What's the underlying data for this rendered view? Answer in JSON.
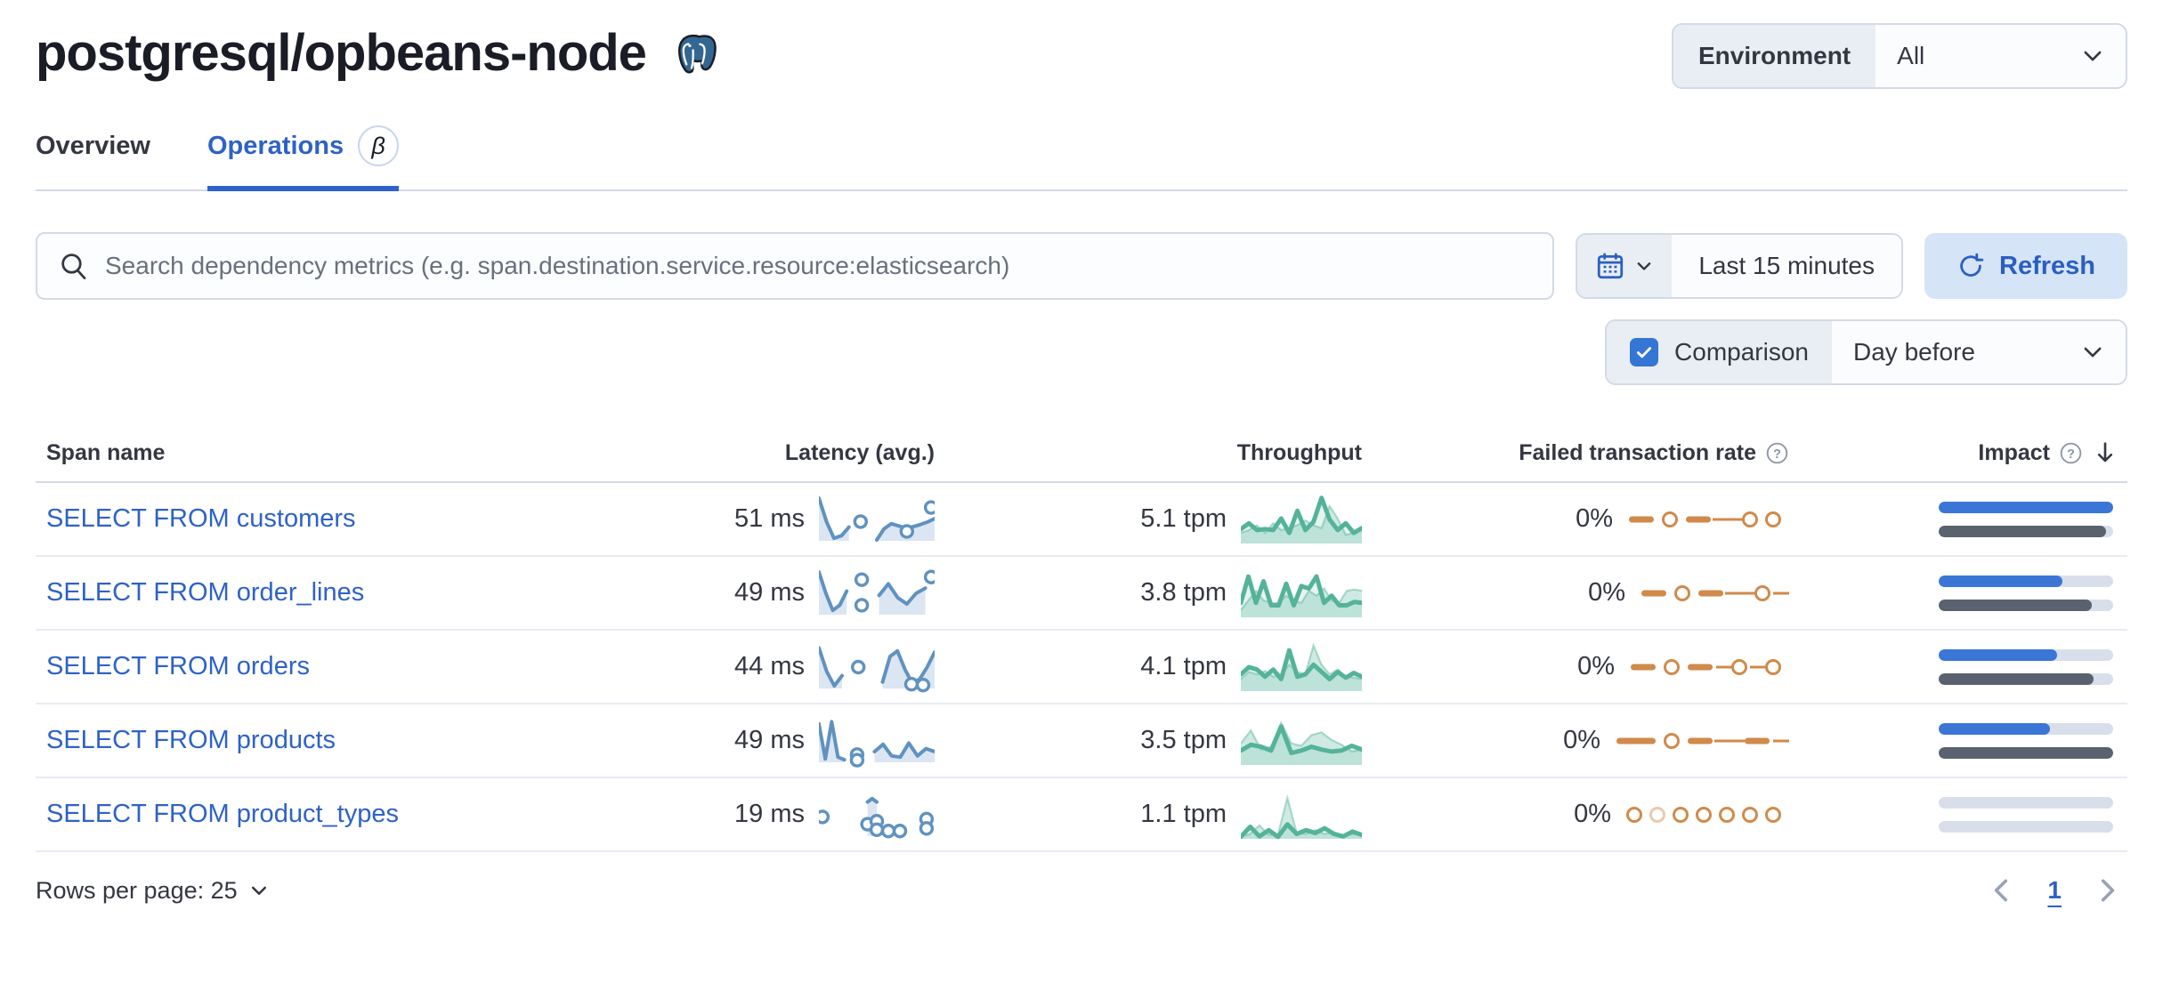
{
  "header": {
    "title": "postgresql/opbeans-node",
    "env_label": "Environment",
    "env_value": "All"
  },
  "tabs": [
    {
      "label": "Overview"
    },
    {
      "label": "Operations",
      "beta": "β"
    }
  ],
  "toolbar": {
    "search_placeholder": "Search dependency metrics (e.g. span.destination.service.resource:elasticsearch)",
    "time_range": "Last 15 minutes",
    "refresh_label": "Refresh",
    "comparison_label": "Comparison",
    "comparison_value": "Day before"
  },
  "table": {
    "columns": {
      "span_name": "Span name",
      "latency": "Latency (avg.)",
      "throughput": "Throughput",
      "failed_rate": "Failed transaction rate",
      "impact": "Impact"
    },
    "rows": [
      {
        "span_name": "SELECT FROM customers",
        "latency": "51 ms",
        "throughput": "5.1 tpm",
        "failed_rate": "0%",
        "impact_current": 1.0,
        "impact_previous": 0.96,
        "latency_spark": {
          "segments": [
            {
              "x0": 0.0,
              "x1": 0.26,
              "v": [
                1,
                0.45,
                0.06,
                0.12,
                0.32
              ]
            },
            {
              "x0": 0.5,
              "x1": 1.0,
              "v": [
                0.02,
                0.28,
                0.4,
                0.35,
                0.3,
                0.33,
                0.38,
                0.44,
                0.52
              ]
            }
          ],
          "dots": [
            [
              0.36,
              0.45
            ],
            [
              0.76,
              0.22
            ],
            [
              0.97,
              0.78
            ]
          ]
        },
        "throughput_spark": {
          "current": [
            0.3,
            0.42,
            0.28,
            0.3,
            0.28,
            0.52,
            0.22,
            0.68,
            0.28,
            0.45,
            0.95,
            0.5,
            0.28,
            0.42,
            0.22,
            0.32
          ],
          "previous": [
            0.22,
            0.28,
            0.38,
            0.22,
            0.42,
            0.28,
            0.32,
            0.38,
            0.48,
            0.38,
            0.32,
            0.78,
            0.52,
            0.18,
            0.22,
            0.28
          ]
        },
        "failed_spark": [
          "dash",
          "circle",
          "dash",
          "thin",
          "circle",
          "circle"
        ]
      },
      {
        "span_name": "SELECT FROM order_lines",
        "latency": "49 ms",
        "throughput": "3.8 tpm",
        "failed_rate": "0%",
        "impact_current": 0.71,
        "impact_previous": 0.88,
        "latency_spark": {
          "segments": [
            {
              "x0": 0.0,
              "x1": 0.24,
              "v": [
                1,
                0.5,
                0.1,
                0.22,
                0.55
              ]
            },
            {
              "x0": 0.52,
              "x1": 0.92,
              "v": [
                0.45,
                0.72,
                0.4,
                0.25,
                0.5,
                0.62
              ]
            }
          ],
          "dots": [
            [
              0.37,
              0.82
            ],
            [
              0.37,
              0.22
            ],
            [
              0.97,
              0.88
            ]
          ]
        },
        "throughput_spark": {
          "current": [
            0.3,
            0.85,
            0.3,
            0.75,
            0.25,
            0.25,
            0.7,
            0.25,
            0.65,
            0.6,
            0.85,
            0.3,
            0.45,
            0.25,
            0.25,
            0.32,
            0.3
          ],
          "previous": [
            0.15,
            0.35,
            0.55,
            0.35,
            0.3,
            0.3,
            0.45,
            0.35,
            0.3,
            0.55,
            0.45,
            0.6,
            0.35,
            0.3,
            0.55,
            0.58,
            0.55
          ]
        },
        "failed_spark": [
          "dash",
          "circle",
          "dash",
          "thin",
          "circle",
          "thin-s"
        ]
      },
      {
        "span_name": "SELECT FROM orders",
        "latency": "44 ms",
        "throughput": "4.1 tpm",
        "failed_rate": "0%",
        "impact_current": 0.68,
        "impact_previous": 0.89,
        "latency_spark": {
          "segments": [
            {
              "x0": 0.0,
              "x1": 0.2,
              "v": [
                0.95,
                0.4,
                0.06,
                0.3
              ]
            },
            {
              "x0": 0.55,
              "x1": 1.0,
              "v": [
                0.15,
                0.75,
                0.88,
                0.45,
                0.12,
                0.22,
                0.5,
                0.85
              ]
            }
          ],
          "dots": [
            [
              0.34,
              0.5
            ],
            [
              0.8,
              0.1
            ],
            [
              0.9,
              0.08
            ]
          ]
        },
        "throughput_spark": {
          "current": [
            0.35,
            0.5,
            0.45,
            0.3,
            0.45,
            0.25,
            0.85,
            0.3,
            0.35,
            0.55,
            0.4,
            0.25,
            0.4,
            0.28,
            0.38,
            0.3
          ],
          "previous": [
            0.25,
            0.4,
            0.35,
            0.42,
            0.3,
            0.35,
            0.55,
            0.4,
            0.35,
            0.95,
            0.55,
            0.35,
            0.45,
            0.3,
            0.28,
            0.25
          ]
        },
        "failed_spark": [
          "dash",
          "circle",
          "dash",
          "thin-s",
          "circle",
          "thin-s",
          "circle"
        ]
      },
      {
        "span_name": "SELECT FROM products",
        "latency": "49 ms",
        "throughput": "3.5 tpm",
        "failed_rate": "0%",
        "impact_current": 0.64,
        "impact_previous": 1.0,
        "latency_spark": {
          "segments": [
            {
              "x0": 0.0,
              "x1": 0.22,
              "v": [
                0.9,
                0.08,
                0.95,
                0.12,
                0.06
              ]
            },
            {
              "x0": 0.48,
              "x1": 1.0,
              "v": [
                0.25,
                0.42,
                0.15,
                0.12,
                0.45,
                0.15,
                0.32,
                0.25
              ]
            }
          ],
          "dots": [
            [
              0.33,
              0.18
            ],
            [
              0.33,
              0.05
            ]
          ]
        },
        "throughput_spark": {
          "current": [
            0.3,
            0.42,
            0.38,
            0.3,
            0.8,
            0.25,
            0.3,
            0.38,
            0.32,
            0.28,
            0.3,
            0.4,
            0.32
          ],
          "previous": [
            0.45,
            0.72,
            0.32,
            0.38,
            0.88,
            0.45,
            0.4,
            0.62,
            0.68,
            0.52,
            0.42,
            0.28,
            0.32
          ]
        },
        "failed_spark": [
          "dash-l",
          "circle",
          "dash",
          "thin",
          "dash",
          "thin-s"
        ]
      },
      {
        "span_name": "SELECT FROM product_types",
        "latency": "19 ms",
        "throughput": "1.1 tpm",
        "failed_rate": "0%",
        "impact_current": 0.0,
        "impact_previous": 0.0,
        "latency_spark": {
          "segments": [
            {
              "x0": 0.42,
              "x1": 0.5,
              "v": [
                0.8,
                0.88,
                0.8
              ]
            }
          ],
          "dots": [
            [
              0.03,
              0.45
            ],
            [
              0.42,
              0.28
            ],
            [
              0.5,
              0.35
            ],
            [
              0.5,
              0.15
            ],
            [
              0.6,
              0.12
            ],
            [
              0.7,
              0.12
            ],
            [
              0.93,
              0.4
            ],
            [
              0.93,
              0.18
            ]
          ]
        },
        "throughput_spark": {
          "current": [
            0.04,
            0.25,
            0.05,
            0.18,
            0.04,
            0.3,
            0.1,
            0.18,
            0.12,
            0.22,
            0.1,
            0.05,
            0.15,
            0.08
          ],
          "previous": [
            0.04,
            0.1,
            0.28,
            0.08,
            0.1,
            0.85,
            0.12,
            0.1,
            0.18,
            0.1,
            0.14,
            0.06,
            0.1,
            0.08
          ]
        },
        "failed_spark": [
          "circle",
          "circle-light",
          "circle",
          "circle",
          "circle",
          "circle",
          "circle"
        ]
      }
    ]
  },
  "footer": {
    "rows_per_page": "Rows per page: 25",
    "page": "1"
  },
  "colors": {
    "link_blue": "#2e62c6",
    "impact_blue": "#3b76d6",
    "impact_grey": "#5a6270",
    "latency_blue": "#6092c0",
    "latency_fill": "#dbe6f2",
    "throughput_green": "#54b399",
    "failed_orange": "#d08a4a"
  }
}
